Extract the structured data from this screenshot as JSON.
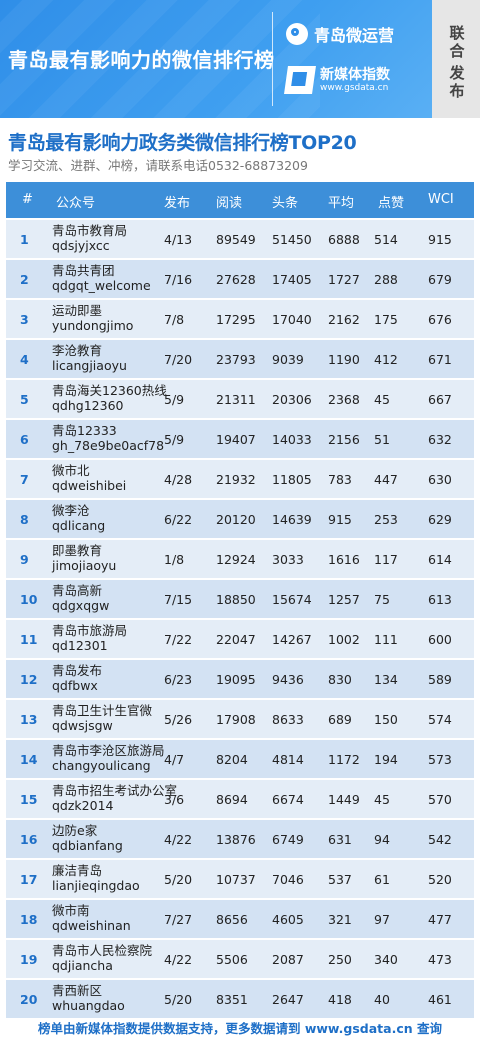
{
  "banner": {
    "title": "青岛最有影响力的微信排行榜",
    "brand_top": "青岛微运营",
    "brand_bottom": "新媒体指数",
    "brand_url": "www.gsdata.cn",
    "joint_publish": [
      "联",
      "合",
      "发",
      "布"
    ]
  },
  "heading": {
    "title": "青岛最有影响力政务类微信排行榜TOP20",
    "subtitle": "学习交流、进群、冲榜，请联系电话0532-68873209"
  },
  "table": {
    "columns": [
      "#",
      "公众号",
      "发布",
      "阅读",
      "头条",
      "平均",
      "点赞",
      "WCI"
    ],
    "rows": [
      {
        "rank": "1",
        "name": "青岛市教育局",
        "id": "qdsjyjxcc",
        "date": "4/13",
        "read": "89549",
        "top": "51450",
        "avg": "6888",
        "like": "514",
        "wci": "915"
      },
      {
        "rank": "2",
        "name": "青岛共青团",
        "id": "qdgqt_welcome",
        "date": "7/16",
        "read": "27628",
        "top": "17405",
        "avg": "1727",
        "like": "288",
        "wci": "679"
      },
      {
        "rank": "3",
        "name": "运动即墨",
        "id": "yundongjimo",
        "date": "7/8",
        "read": "17295",
        "top": "17040",
        "avg": "2162",
        "like": "175",
        "wci": "676"
      },
      {
        "rank": "4",
        "name": "李沧教育",
        "id": "licangjiaoyu",
        "date": "7/20",
        "read": "23793",
        "top": "9039",
        "avg": "1190",
        "like": "412",
        "wci": "671"
      },
      {
        "rank": "5",
        "name": "青岛海关12360热线",
        "id": "qdhg12360",
        "date": "5/9",
        "read": "21311",
        "top": "20306",
        "avg": "2368",
        "like": "45",
        "wci": "667"
      },
      {
        "rank": "6",
        "name": "青岛12333",
        "id": "gh_78e9be0acf78",
        "date": "5/9",
        "read": "19407",
        "top": "14033",
        "avg": "2156",
        "like": "51",
        "wci": "632"
      },
      {
        "rank": "7",
        "name": "微市北",
        "id": "qdweishibei",
        "date": "4/28",
        "read": "21932",
        "top": "11805",
        "avg": "783",
        "like": "447",
        "wci": "630"
      },
      {
        "rank": "8",
        "name": "微李沧",
        "id": "qdlicang",
        "date": "6/22",
        "read": "20120",
        "top": "14639",
        "avg": "915",
        "like": "253",
        "wci": "629"
      },
      {
        "rank": "9",
        "name": "即墨教育",
        "id": "jimojiaoyu",
        "date": "1/8",
        "read": "12924",
        "top": "3033",
        "avg": "1616",
        "like": "117",
        "wci": "614"
      },
      {
        "rank": "10",
        "name": "青岛高新",
        "id": "qdgxqgw",
        "date": "7/15",
        "read": "18850",
        "top": "15674",
        "avg": "1257",
        "like": "75",
        "wci": "613"
      },
      {
        "rank": "11",
        "name": "青岛市旅游局",
        "id": "qd12301",
        "date": "7/22",
        "read": "22047",
        "top": "14267",
        "avg": "1002",
        "like": "111",
        "wci": "600"
      },
      {
        "rank": "12",
        "name": "青岛发布",
        "id": "qdfbwx",
        "date": "6/23",
        "read": "19095",
        "top": "9436",
        "avg": "830",
        "like": "134",
        "wci": "589"
      },
      {
        "rank": "13",
        "name": "青岛卫生计生官微",
        "id": "qdwsjsgw",
        "date": "5/26",
        "read": "17908",
        "top": "8633",
        "avg": "689",
        "like": "150",
        "wci": "574"
      },
      {
        "rank": "14",
        "name": "青岛市李沧区旅游局",
        "id": "changyoulicang",
        "date": "4/7",
        "read": "8204",
        "top": "4814",
        "avg": "1172",
        "like": "194",
        "wci": "573"
      },
      {
        "rank": "15",
        "name": "青岛市招生考试办公室",
        "id": "qdzk2014",
        "date": "3/6",
        "read": "8694",
        "top": "6674",
        "avg": "1449",
        "like": "45",
        "wci": "570"
      },
      {
        "rank": "16",
        "name": "边防e家",
        "id": "qdbianfang",
        "date": "4/22",
        "read": "13876",
        "top": "6749",
        "avg": "631",
        "like": "94",
        "wci": "542"
      },
      {
        "rank": "17",
        "name": "廉洁青岛",
        "id": "lianjieqingdao",
        "date": "5/20",
        "read": "10737",
        "top": "7046",
        "avg": "537",
        "like": "61",
        "wci": "520"
      },
      {
        "rank": "18",
        "name": "微市南",
        "id": "qdweishinan",
        "date": "7/27",
        "read": "8656",
        "top": "4605",
        "avg": "321",
        "like": "97",
        "wci": "477"
      },
      {
        "rank": "19",
        "name": "青岛市人民检察院",
        "id": "qdjiancha",
        "date": "4/22",
        "read": "5506",
        "top": "2087",
        "avg": "250",
        "like": "340",
        "wci": "473"
      },
      {
        "rank": "20",
        "name": "青西新区",
        "id": "whuangdao",
        "date": "5/20",
        "read": "8351",
        "top": "2647",
        "avg": "418",
        "like": "40",
        "wci": "461"
      }
    ]
  },
  "footer": {
    "text": "榜单由新媒体指数提供数据支持，更多数据请到 www.gsdata.cn 查询"
  },
  "colors": {
    "banner_blue": "#2f8ee8",
    "header_blue": "#3d8fd9",
    "title_blue": "#1e6fc7",
    "row_light": "#e4edf7",
    "row_dark": "#d3e2f3"
  }
}
